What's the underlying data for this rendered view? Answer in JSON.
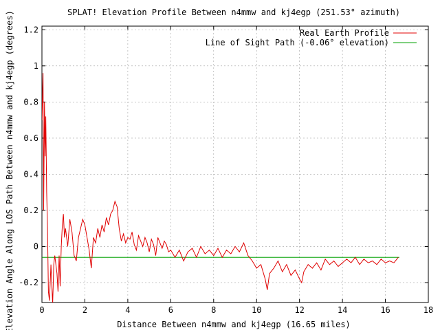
{
  "chart_data": {
    "type": "line",
    "title": "SPLAT! Elevation Profile Between n4mmw and kj4egp (251.53° azimuth)",
    "xlabel": "Distance Between n4mmw and kj4egp (16.65 miles)",
    "ylabel": "Elevation Angle Along LOS Path Between n4mmw and kj4egp (degrees)",
    "xlim": [
      0,
      18
    ],
    "ylim": [
      -0.31,
      1.22
    ],
    "xticks": [
      "0",
      "2",
      "4",
      "6",
      "8",
      "10",
      "12",
      "14",
      "16",
      "18"
    ],
    "xtick_values": [
      0,
      2,
      4,
      6,
      8,
      10,
      12,
      14,
      16,
      18
    ],
    "yticks": [
      "-0.2",
      "0",
      "0.2",
      "0.4",
      "0.6",
      "0.8",
      "1",
      "1.2"
    ],
    "ytick_values": [
      -0.2,
      0,
      0.2,
      0.4,
      0.6,
      0.8,
      1.0,
      1.2
    ],
    "grid": true,
    "legend_position": "top-right",
    "series": [
      {
        "name": "Real Earth Profile",
        "color": "#e00000",
        "x": [
          0,
          0.05,
          0.08,
          0.12,
          0.15,
          0.18,
          0.22,
          0.26,
          0.3,
          0.35,
          0.42,
          0.5,
          0.55,
          0.6,
          0.7,
          0.75,
          0.8,
          0.85,
          0.9,
          0.95,
          1.0,
          1.05,
          1.1,
          1.2,
          1.3,
          1.4,
          1.5,
          1.6,
          1.7,
          1.8,
          1.9,
          2.0,
          2.1,
          2.2,
          2.3,
          2.4,
          2.5,
          2.6,
          2.7,
          2.8,
          2.9,
          3.0,
          3.1,
          3.2,
          3.3,
          3.4,
          3.5,
          3.6,
          3.7,
          3.8,
          3.9,
          4.0,
          4.1,
          4.2,
          4.3,
          4.4,
          4.5,
          4.6,
          4.7,
          4.8,
          4.9,
          5.0,
          5.1,
          5.2,
          5.3,
          5.4,
          5.5,
          5.6,
          5.7,
          5.8,
          5.9,
          6.0,
          6.2,
          6.4,
          6.6,
          6.8,
          7.0,
          7.2,
          7.4,
          7.6,
          7.8,
          8.0,
          8.2,
          8.4,
          8.6,
          8.8,
          9.0,
          9.2,
          9.4,
          9.6,
          9.8,
          10.0,
          10.2,
          10.4,
          10.5,
          10.6,
          10.8,
          11.0,
          11.2,
          11.4,
          11.6,
          11.8,
          12.0,
          12.1,
          12.2,
          12.4,
          12.6,
          12.8,
          13.0,
          13.2,
          13.4,
          13.6,
          13.8,
          14.0,
          14.2,
          14.4,
          14.6,
          14.8,
          15.0,
          15.2,
          15.4,
          15.6,
          15.8,
          16.0,
          16.2,
          16.4,
          16.6
        ],
        "y": [
          0.7,
          0.96,
          0.2,
          0.8,
          0.5,
          0.72,
          0.3,
          0.1,
          -0.25,
          -0.3,
          -0.1,
          -0.32,
          -0.1,
          -0.05,
          -0.15,
          -0.25,
          -0.05,
          -0.22,
          0.0,
          0.12,
          0.18,
          0.05,
          0.1,
          0.0,
          0.15,
          0.08,
          -0.05,
          -0.08,
          0.05,
          0.1,
          0.15,
          0.12,
          0.05,
          -0.02,
          -0.12,
          0.05,
          0.02,
          0.1,
          0.05,
          0.12,
          0.08,
          0.16,
          0.12,
          0.18,
          0.2,
          0.25,
          0.22,
          0.1,
          0.03,
          0.07,
          0.02,
          0.05,
          0.04,
          0.08,
          0.01,
          -0.02,
          0.06,
          0.03,
          0.0,
          0.05,
          0.02,
          -0.03,
          0.04,
          0.01,
          -0.05,
          0.05,
          0.02,
          -0.01,
          0.03,
          0.01,
          -0.03,
          -0.02,
          -0.06,
          -0.02,
          -0.08,
          -0.03,
          -0.01,
          -0.06,
          0.0,
          -0.04,
          -0.02,
          -0.05,
          -0.01,
          -0.06,
          -0.02,
          -0.04,
          0.0,
          -0.03,
          0.02,
          -0.05,
          -0.08,
          -0.12,
          -0.1,
          -0.18,
          -0.24,
          -0.15,
          -0.12,
          -0.08,
          -0.14,
          -0.1,
          -0.16,
          -0.13,
          -0.18,
          -0.2,
          -0.14,
          -0.1,
          -0.12,
          -0.09,
          -0.13,
          -0.07,
          -0.1,
          -0.08,
          -0.11,
          -0.09,
          -0.07,
          -0.09,
          -0.06,
          -0.1,
          -0.07,
          -0.09,
          -0.08,
          -0.1,
          -0.07,
          -0.09,
          -0.08,
          -0.09,
          -0.06
        ]
      },
      {
        "name": "Line of Sight Path (-0.06° elevation)",
        "color": "#00a000",
        "x": [
          0,
          16.65
        ],
        "y": [
          -0.06,
          -0.06
        ]
      }
    ]
  }
}
